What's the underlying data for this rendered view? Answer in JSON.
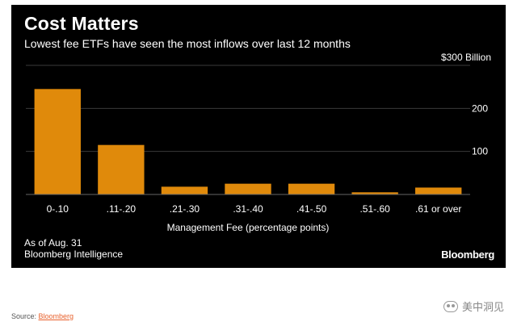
{
  "chart_data": {
    "type": "bar",
    "title": "Cost Matters",
    "subtitle": "Lowest fee ETFs have seen the most inflows over last 12 months",
    "xlabel": "Management Fee (percentage points)",
    "ylabel": "",
    "y_unit_label": "$300 Billion",
    "yticks": [
      100,
      200
    ],
    "ylim": [
      0,
      300
    ],
    "categories": [
      "0-.10",
      ".11-.20",
      ".21-.30",
      ".31-.40",
      ".41-.50",
      ".51-.60",
      ".61 or over"
    ],
    "values": [
      245,
      115,
      18,
      25,
      25,
      5,
      16
    ],
    "bar_color": "#e08a0b",
    "background_color": "#000000",
    "grid": true,
    "legend": "none"
  },
  "notes": {
    "line1": "As of Aug. 31",
    "line2": "Bloomberg Intelligence"
  },
  "brand": "Bloomberg",
  "source": {
    "prefix": "Source: ",
    "link": "Bloomberg"
  },
  "watermark": "美中洞见"
}
